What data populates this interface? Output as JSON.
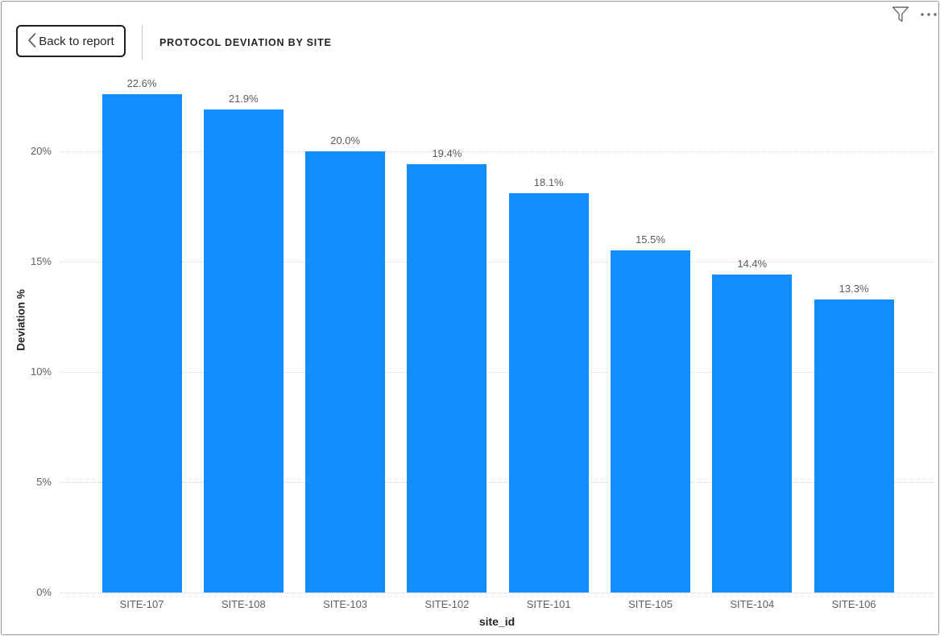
{
  "header": {
    "back_button_label": "Back to report",
    "title": "PROTOCOL DEVIATION BY SITE"
  },
  "chart_data": {
    "type": "bar",
    "title": "PROTOCOL DEVIATION BY SITE",
    "categories": [
      "SITE-107",
      "SITE-108",
      "SITE-103",
      "SITE-102",
      "SITE-101",
      "SITE-105",
      "SITE-104",
      "SITE-106"
    ],
    "values": [
      22.6,
      21.9,
      20.0,
      19.4,
      18.1,
      15.5,
      14.4,
      13.3
    ],
    "data_labels": [
      "22.6%",
      "21.9%",
      "20.0%",
      "19.4%",
      "18.1%",
      "15.5%",
      "14.4%",
      "13.3%"
    ],
    "xlabel": "site_id",
    "ylabel": "Deviation %",
    "ylim": [
      0,
      24
    ],
    "y_ticks": [
      {
        "value": 0,
        "label": "0%"
      },
      {
        "value": 5,
        "label": "5%"
      },
      {
        "value": 10,
        "label": "10%"
      },
      {
        "value": 15,
        "label": "15%"
      },
      {
        "value": 20,
        "label": "20%"
      }
    ],
    "grid": "horizontal-dotted",
    "legend": "none",
    "bar_color": "#118DFF",
    "label_color": "#605e5c",
    "axis_title_color": "#252423"
  }
}
